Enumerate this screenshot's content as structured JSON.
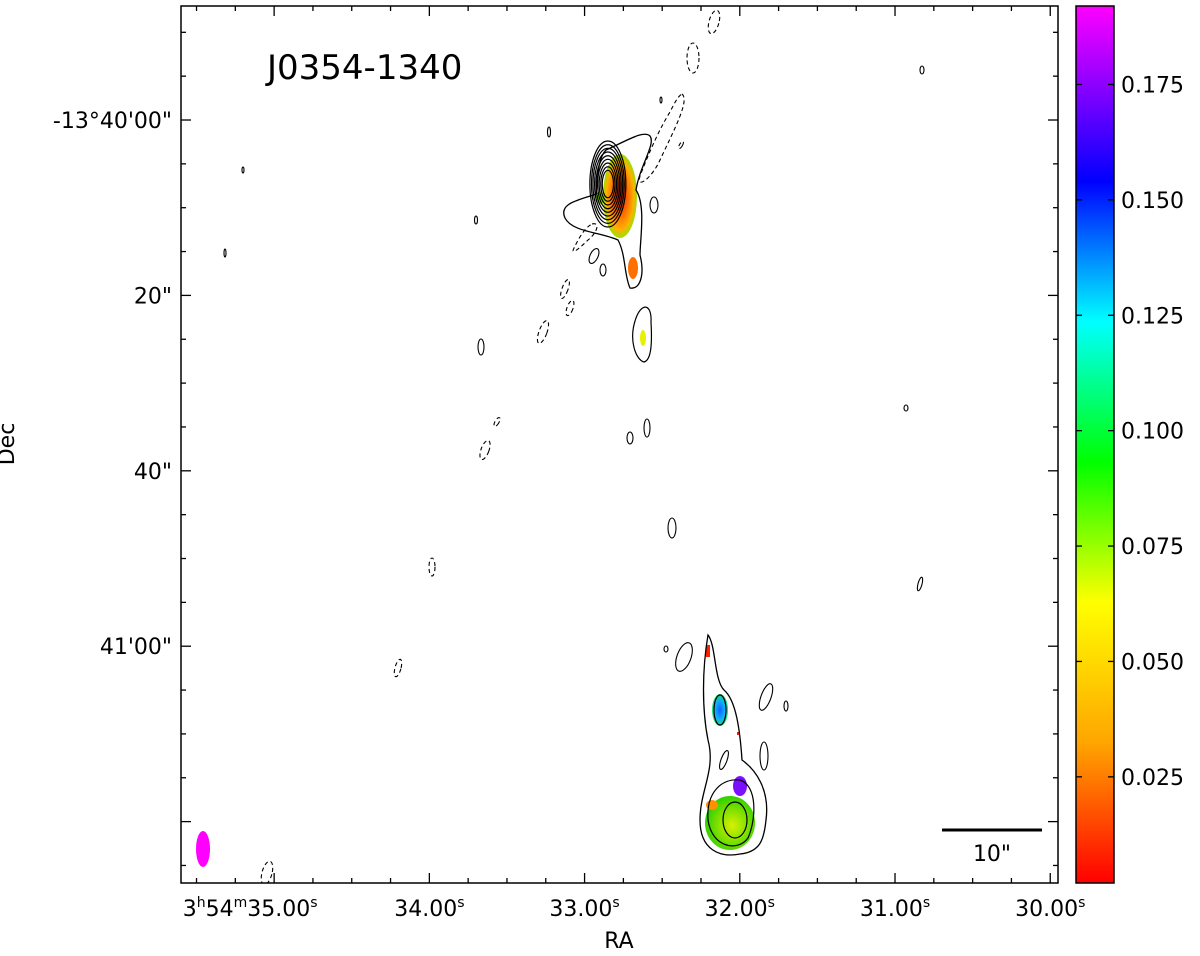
{
  "chart_data": {
    "type": "heatmap",
    "title": "J0354-1340",
    "xlabel": "RA",
    "ylabel": "Dec",
    "xlim_seconds": [
      35.6,
      29.95
    ],
    "ylim_arcsec": [
      -13.0,
      87.0
    ],
    "x_ticks": [
      {
        "value": 35.0,
        "h": "3",
        "m": "54",
        "s": "35.00",
        "full": true
      },
      {
        "value": 34.0,
        "s": "34.00"
      },
      {
        "value": 33.0,
        "s": "33.00"
      },
      {
        "value": 32.0,
        "s": "32.00"
      },
      {
        "value": 31.0,
        "s": "31.00"
      },
      {
        "value": 30.0,
        "s": "30.00"
      }
    ],
    "y_ticks": [
      {
        "value": 0,
        "label": "-13°40'00\""
      },
      {
        "value": 20,
        "label": "20\""
      },
      {
        "value": 40,
        "label": "40\""
      },
      {
        "value": 60,
        "label": "41'00\""
      }
    ],
    "colorbar": {
      "range": [
        0.002,
        0.192
      ],
      "ticks": [
        {
          "value": 0.175,
          "label": "0.175"
        },
        {
          "value": 0.15,
          "label": "0.150"
        },
        {
          "value": 0.125,
          "label": "0.125"
        },
        {
          "value": 0.1,
          "label": "0.100"
        },
        {
          "value": 0.075,
          "label": "0.075"
        },
        {
          "value": 0.05,
          "label": "0.050"
        },
        {
          "value": 0.025,
          "label": "0.025"
        }
      ],
      "colormap": [
        "#ff0000",
        "#ffa500",
        "#ffff00",
        "#00ff00",
        "#00ffff",
        "#0000ff",
        "#ff00ff"
      ]
    },
    "scale_bar": {
      "label": "10\"",
      "length_arcsec": 10
    },
    "beam": {
      "color": "#ff00ff"
    },
    "contours": {
      "core": {
        "x": 32.85,
        "y": 7.3,
        "levels": 9
      },
      "lobe": {
        "x": 32.05,
        "y": 69.5,
        "levels": 3
      }
    }
  }
}
